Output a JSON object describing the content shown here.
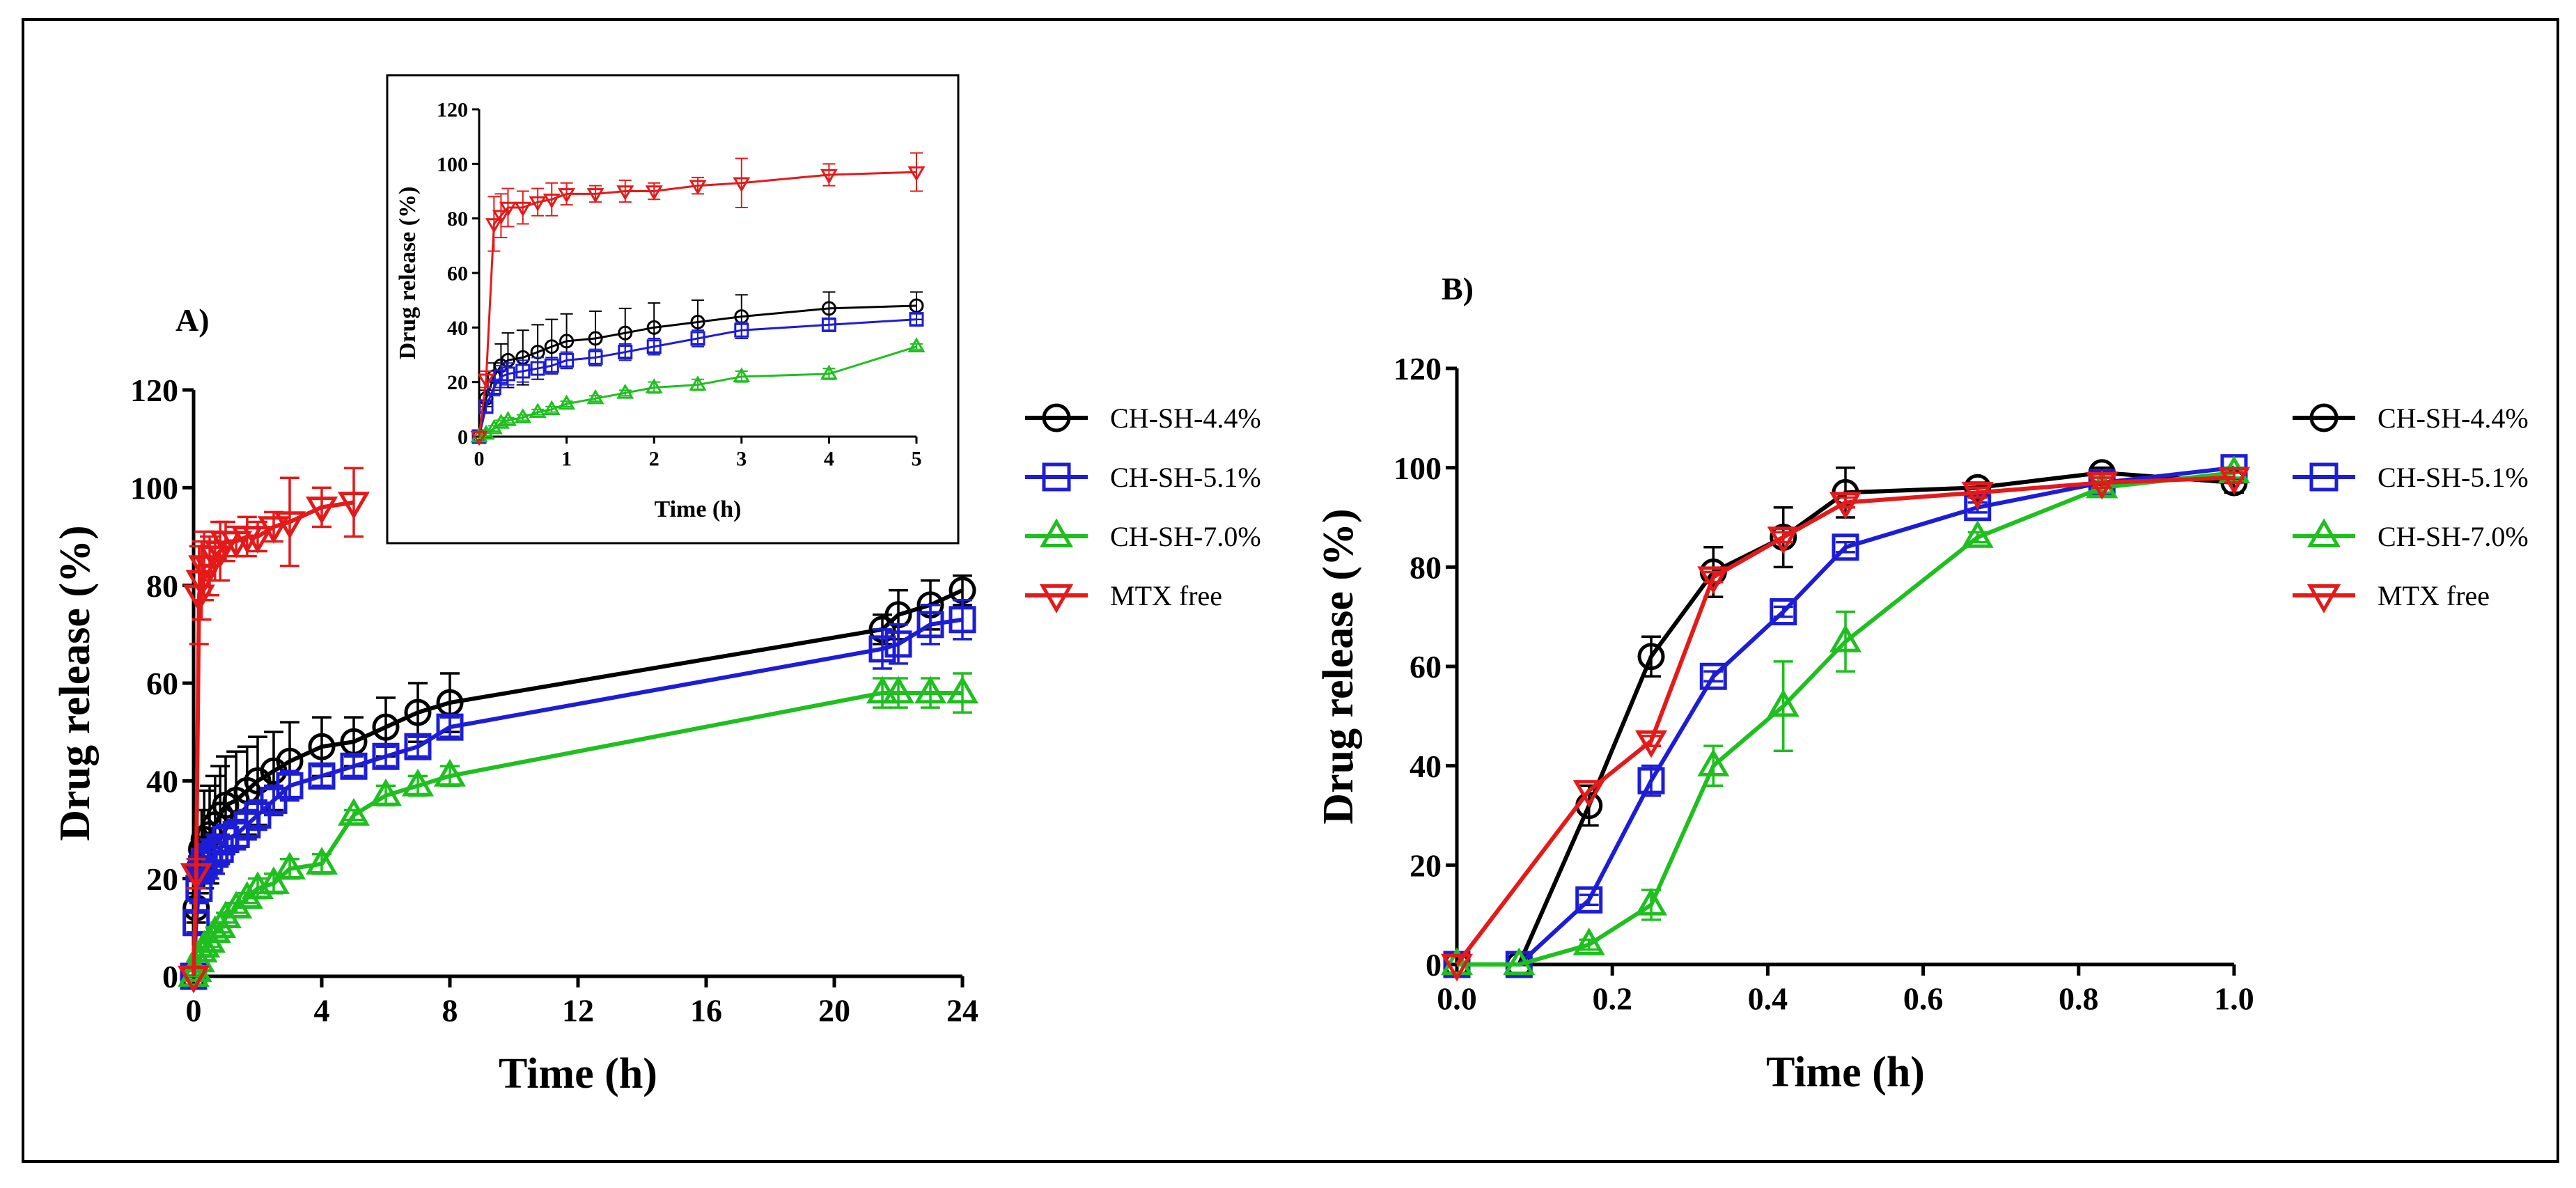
{
  "chart_data": [
    {
      "id": "A",
      "type": "line",
      "title": "A)",
      "xlabel": "Time (h)",
      "ylabel": "Drug release (%)",
      "xlim": [
        0,
        24
      ],
      "ylim": [
        0,
        120
      ],
      "xticks": [
        0,
        4,
        8,
        12,
        16,
        20,
        24
      ],
      "yticks": [
        0,
        20,
        40,
        60,
        80,
        100,
        120
      ],
      "series": [
        {
          "name": "CH-SH-4.4%",
          "color": "#000000",
          "marker": "circle",
          "x": [
            0,
            0.08,
            0.17,
            0.25,
            0.33,
            0.5,
            0.67,
            0.83,
            1,
            1.33,
            1.67,
            2,
            2.5,
            3,
            4,
            5,
            6,
            7,
            8,
            21.5,
            22,
            23,
            24
          ],
          "y": [
            0,
            14,
            22,
            26,
            28,
            29,
            31,
            33,
            35,
            36,
            38,
            40,
            42,
            44,
            47,
            48,
            51,
            54,
            56,
            71,
            74,
            76,
            79
          ],
          "err": [
            0,
            3,
            5,
            8,
            10,
            10,
            10,
            10,
            10,
            10,
            9,
            9,
            8,
            8,
            6,
            5,
            6,
            6,
            6,
            3,
            5,
            5,
            3
          ]
        },
        {
          "name": "CH-SH-5.1%",
          "color": "#1d1dd6",
          "marker": "square",
          "x": [
            0,
            0.08,
            0.17,
            0.25,
            0.33,
            0.5,
            0.67,
            0.83,
            1,
            1.33,
            1.67,
            2,
            2.5,
            3,
            4,
            5,
            6,
            7,
            8,
            21.5,
            22,
            23,
            24
          ],
          "y": [
            0,
            11,
            18,
            22,
            23,
            24,
            25,
            26,
            28,
            29,
            31,
            33,
            36,
            39,
            41,
            43,
            45,
            47,
            51,
            67,
            68,
            72,
            73
          ],
          "err": [
            0,
            2,
            3,
            4,
            4,
            4,
            4,
            3,
            3,
            3,
            3,
            3,
            3,
            3,
            2,
            2,
            2,
            2,
            2,
            4,
            4,
            4,
            4
          ]
        },
        {
          "name": "CH-SH-7.0%",
          "color": "#1fbf1f",
          "marker": "triangle-up",
          "x": [
            0,
            0.08,
            0.17,
            0.25,
            0.33,
            0.5,
            0.67,
            0.83,
            1,
            1.33,
            1.67,
            2,
            2.5,
            3,
            4,
            5,
            6,
            7,
            8,
            21.5,
            22,
            23,
            24
          ],
          "y": [
            0,
            1,
            3,
            5,
            6,
            7,
            9,
            10,
            12,
            14,
            16,
            18,
            19,
            22,
            23,
            33,
            37,
            39,
            41,
            58,
            58,
            58,
            58
          ],
          "err": [
            0,
            1,
            1,
            1,
            1,
            1,
            1,
            1,
            1,
            1,
            1,
            2,
            2,
            2,
            2,
            1,
            2,
            2,
            2,
            3,
            3,
            3,
            4
          ]
        },
        {
          "name": "MTX free",
          "color": "#e41a1a",
          "marker": "triangle-down",
          "x": [
            0,
            0.08,
            0.17,
            0.25,
            0.33,
            0.5,
            0.67,
            0.83,
            1,
            1.33,
            1.67,
            2,
            2.5,
            3,
            4,
            5
          ],
          "y": [
            0,
            21,
            78,
            81,
            84,
            84,
            86,
            87,
            89,
            89,
            90,
            90,
            92,
            93,
            96,
            97
          ],
          "err": [
            0,
            3,
            10,
            8,
            7,
            6,
            5,
            6,
            4,
            3,
            4,
            3,
            3,
            9,
            4,
            7
          ]
        }
      ]
    },
    {
      "id": "A-inset",
      "type": "line",
      "xlabel": "Time (h)",
      "ylabel": "Drug release (%)",
      "xlim": [
        0,
        5
      ],
      "ylim": [
        0,
        120
      ],
      "xticks": [
        0,
        1,
        2,
        3,
        4,
        5
      ],
      "yticks": [
        0,
        20,
        40,
        60,
        80,
        100,
        120
      ],
      "series": [
        {
          "name": "CH-SH-4.4%",
          "color": "#000000",
          "marker": "circle",
          "x": [
            0,
            0.08,
            0.17,
            0.25,
            0.33,
            0.5,
            0.67,
            0.83,
            1,
            1.33,
            1.67,
            2,
            2.5,
            3,
            4,
            5
          ],
          "y": [
            0,
            14,
            22,
            26,
            28,
            29,
            31,
            33,
            35,
            36,
            38,
            40,
            42,
            44,
            47,
            48
          ],
          "err": [
            0,
            3,
            5,
            8,
            10,
            10,
            10,
            10,
            10,
            10,
            9,
            9,
            8,
            8,
            6,
            5
          ]
        },
        {
          "name": "CH-SH-5.1%",
          "color": "#1d1dd6",
          "marker": "square",
          "x": [
            0,
            0.08,
            0.17,
            0.25,
            0.33,
            0.5,
            0.67,
            0.83,
            1,
            1.33,
            1.67,
            2,
            2.5,
            3,
            4,
            5
          ],
          "y": [
            0,
            11,
            18,
            22,
            23,
            24,
            25,
            26,
            28,
            29,
            31,
            33,
            36,
            39,
            41,
            43
          ],
          "err": [
            0,
            2,
            3,
            4,
            4,
            4,
            4,
            3,
            3,
            3,
            3,
            3,
            3,
            3,
            2,
            2
          ]
        },
        {
          "name": "CH-SH-7.0%",
          "color": "#1fbf1f",
          "marker": "triangle-up",
          "x": [
            0,
            0.08,
            0.17,
            0.25,
            0.33,
            0.5,
            0.67,
            0.83,
            1,
            1.33,
            1.67,
            2,
            2.5,
            3,
            4,
            5
          ],
          "y": [
            0,
            1,
            3,
            5,
            6,
            7,
            9,
            10,
            12,
            14,
            16,
            18,
            19,
            22,
            23,
            33
          ],
          "err": [
            0,
            1,
            1,
            1,
            1,
            1,
            1,
            1,
            1,
            1,
            1,
            2,
            2,
            2,
            2,
            1
          ]
        },
        {
          "name": "MTX free",
          "color": "#e41a1a",
          "marker": "triangle-down",
          "x": [
            0,
            0.08,
            0.17,
            0.25,
            0.33,
            0.5,
            0.67,
            0.83,
            1,
            1.33,
            1.67,
            2,
            2.5,
            3,
            4,
            5
          ],
          "y": [
            0,
            21,
            78,
            81,
            84,
            84,
            86,
            87,
            89,
            89,
            90,
            90,
            92,
            93,
            96,
            97
          ],
          "err": [
            0,
            3,
            10,
            8,
            7,
            6,
            5,
            6,
            4,
            3,
            4,
            3,
            3,
            9,
            4,
            7
          ]
        }
      ]
    },
    {
      "id": "B",
      "type": "line",
      "title": "B)",
      "xlabel": "Time (h)",
      "ylabel": "Drug release (%)",
      "xlim": [
        0,
        1.0
      ],
      "ylim": [
        0,
        120
      ],
      "xticks": [
        "0.0",
        "0.2",
        "0.4",
        "0.6",
        "0.8",
        "1.0"
      ],
      "yticks": [
        0,
        20,
        40,
        60,
        80,
        100,
        120
      ],
      "series": [
        {
          "name": "CH-SH-4.4%",
          "color": "#000000",
          "marker": "circle",
          "x": [
            0,
            0.08,
            0.17,
            0.25,
            0.33,
            0.42,
            0.5,
            0.67,
            0.83,
            1.0
          ],
          "y": [
            0,
            0,
            32,
            62,
            79,
            86,
            95,
            96,
            99,
            97
          ],
          "err": [
            0,
            0,
            4,
            4,
            5,
            6,
            5,
            1,
            1,
            2
          ]
        },
        {
          "name": "CH-SH-5.1%",
          "color": "#1d1dd6",
          "marker": "square",
          "x": [
            0,
            0.08,
            0.17,
            0.25,
            0.33,
            0.42,
            0.5,
            0.67,
            0.83,
            1.0
          ],
          "y": [
            0,
            0,
            13,
            37,
            58,
            71,
            84,
            92,
            97,
            100
          ],
          "err": [
            0,
            0,
            1,
            3,
            1,
            1,
            1,
            1,
            1,
            0
          ]
        },
        {
          "name": "CH-SH-7.0%",
          "color": "#1fbf1f",
          "marker": "triangle-up",
          "x": [
            0,
            0.08,
            0.17,
            0.25,
            0.33,
            0.42,
            0.5,
            0.67,
            0.83,
            1.0
          ],
          "y": [
            0,
            0,
            4,
            12,
            40,
            52,
            65,
            86,
            96,
            99
          ],
          "err": [
            0,
            0,
            1,
            3,
            4,
            9,
            6,
            1,
            1,
            1
          ]
        },
        {
          "name": "MTX free",
          "color": "#e41a1a",
          "marker": "triangle-down",
          "x": [
            0,
            0.17,
            0.25,
            0.33,
            0.42,
            0.5,
            0.67,
            0.83,
            1.0
          ],
          "y": [
            0,
            35,
            45,
            78,
            86,
            93,
            95,
            97,
            98
          ],
          "err": [
            0,
            0,
            1,
            1,
            1,
            1,
            1,
            1,
            1
          ]
        }
      ]
    }
  ]
}
